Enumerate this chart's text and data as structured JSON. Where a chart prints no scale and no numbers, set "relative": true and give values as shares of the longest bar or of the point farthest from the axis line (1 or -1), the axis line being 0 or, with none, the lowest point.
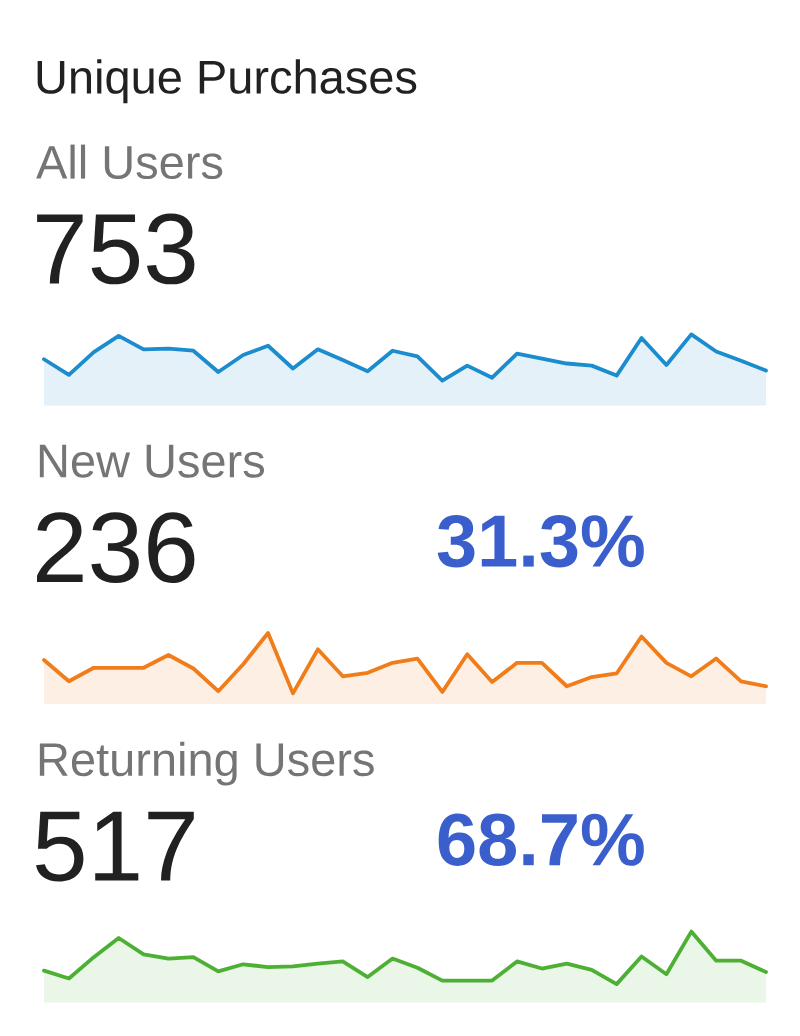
{
  "chart_data": [
    {
      "type": "area",
      "title": "Unique Purchases",
      "subtitle": "All Users",
      "annotations": [
        "753"
      ],
      "categories": [
        null,
        null,
        null,
        null,
        null,
        null,
        null,
        null,
        null,
        null,
        null,
        null,
        null,
        null,
        null,
        null,
        null,
        null,
        null,
        null,
        null,
        null,
        null,
        null,
        null,
        null,
        null,
        null,
        null,
        null
      ],
      "values": [
        0.65,
        0.43,
        0.75,
        0.98,
        0.79,
        0.8,
        0.77,
        0.47,
        0.71,
        0.84,
        0.52,
        0.79,
        0.64,
        0.48,
        0.77,
        0.69,
        0.35,
        0.56,
        0.39,
        0.73,
        0.66,
        0.59,
        0.56,
        0.42,
        0.95,
        0.57,
        1.0,
        0.76,
        0.63,
        0.49
      ],
      "color": "#1b8ccd",
      "relative": true
    },
    {
      "type": "area",
      "title": "New Users",
      "annotations": [
        "236",
        "31.3%"
      ],
      "categories": [
        null,
        null,
        null,
        null,
        null,
        null,
        null,
        null,
        null,
        null,
        null,
        null,
        null,
        null,
        null,
        null,
        null,
        null,
        null,
        null,
        null,
        null,
        null,
        null,
        null,
        null,
        null,
        null,
        null,
        null
      ],
      "values": [
        0.62,
        0.32,
        0.51,
        0.51,
        0.51,
        0.69,
        0.5,
        0.18,
        0.56,
        1.0,
        0.15,
        0.77,
        0.39,
        0.44,
        0.58,
        0.64,
        0.17,
        0.7,
        0.31,
        0.58,
        0.58,
        0.25,
        0.38,
        0.43,
        0.95,
        0.58,
        0.39,
        0.64,
        0.32,
        0.25
      ],
      "color": "#f07d1a",
      "relative": true
    },
    {
      "type": "area",
      "title": "Returning Users",
      "annotations": [
        "517",
        "68.7%"
      ],
      "categories": [
        null,
        null,
        null,
        null,
        null,
        null,
        null,
        null,
        null,
        null,
        null,
        null,
        null,
        null,
        null,
        null,
        null,
        null,
        null,
        null,
        null,
        null,
        null,
        null,
        null,
        null,
        null,
        null,
        null,
        null
      ],
      "values": [
        0.45,
        0.34,
        0.64,
        0.91,
        0.68,
        0.62,
        0.64,
        0.44,
        0.54,
        0.5,
        0.51,
        0.55,
        0.58,
        0.36,
        0.62,
        0.49,
        0.31,
        0.31,
        0.31,
        0.58,
        0.48,
        0.55,
        0.46,
        0.26,
        0.65,
        0.4,
        1.0,
        0.59,
        0.59,
        0.43
      ],
      "color": "#4db034",
      "relative": true
    }
  ]
}
